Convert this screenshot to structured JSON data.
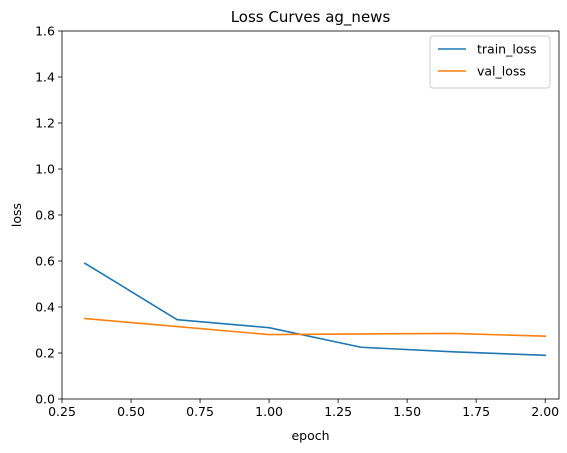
{
  "chart_data": {
    "type": "line",
    "title": "Loss Curves ag_news",
    "xlabel": "epoch",
    "ylabel": "loss",
    "xlim": [
      0.25,
      2.05
    ],
    "ylim": [
      0.0,
      1.6
    ],
    "xticks": [
      0.25,
      0.5,
      0.75,
      1.0,
      1.25,
      1.5,
      1.75,
      2.0
    ],
    "xtick_labels": [
      "0.25",
      "0.50",
      "0.75",
      "1.00",
      "1.25",
      "1.50",
      "1.75",
      "2.00"
    ],
    "yticks": [
      0.0,
      0.2,
      0.4,
      0.6,
      0.8,
      1.0,
      1.2,
      1.4,
      1.6
    ],
    "ytick_labels": [
      "0.0",
      "0.2",
      "0.4",
      "0.6",
      "0.8",
      "1.0",
      "1.2",
      "1.4",
      "1.6"
    ],
    "grid": false,
    "legend_position": "top-right",
    "series": [
      {
        "name": "train_loss",
        "color": "#1f77b4",
        "x": [
          0.333,
          0.667,
          1.0,
          1.333,
          1.667,
          2.0
        ],
        "y": [
          0.59,
          0.345,
          0.31,
          0.225,
          0.205,
          0.19
        ]
      },
      {
        "name": "val_loss",
        "color": "#ff7f0e",
        "x": [
          0.333,
          0.667,
          1.0,
          1.333,
          1.667,
          2.0
        ],
        "y": [
          0.35,
          0.315,
          0.28,
          0.283,
          0.285,
          0.273
        ]
      }
    ]
  }
}
